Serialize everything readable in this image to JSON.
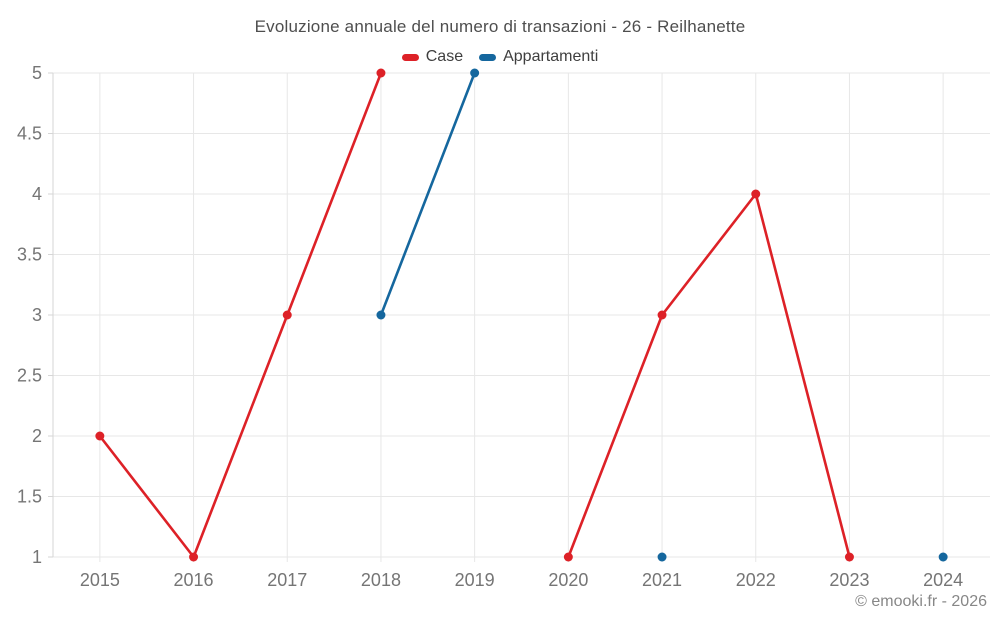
{
  "page": {
    "title": "Evoluzione annuale del numero di transazioni - 26 - Reilhanette",
    "footer": "© emooki.fr - 2026"
  },
  "colors": {
    "case_red": "#dd2127",
    "appartamenti_blue": "#15679e",
    "grid": "#e7e7e7",
    "axis": "#d6d6d6",
    "tick_label": "#757575",
    "title_text": "#4e4e4e",
    "legend_text": "#3f3f3f",
    "footer_text": "#878787"
  },
  "chart_data": {
    "type": "line",
    "title": "Evoluzione annuale del numero di transazioni - 26 - Reilhanette",
    "categories": [
      "2015",
      "2016",
      "2017",
      "2018",
      "2019",
      "2020",
      "2021",
      "2022",
      "2023",
      "2024"
    ],
    "series": [
      {
        "name": "Case",
        "color": "#dd2127",
        "values": [
          2,
          1,
          3,
          5,
          null,
          1,
          3,
          4,
          1,
          null
        ]
      },
      {
        "name": "Appartamenti",
        "color": "#15679e",
        "values": [
          null,
          null,
          null,
          3,
          5,
          null,
          1,
          null,
          null,
          1
        ]
      }
    ],
    "xlabel": "",
    "ylabel": "",
    "ylim": [
      1,
      5
    ],
    "yticks": [
      1,
      1.5,
      2,
      2.5,
      3,
      3.5,
      4,
      4.5,
      5
    ],
    "grid": true,
    "legend_position": "top",
    "marker_radius": 4.5,
    "line_width": 2.6
  }
}
